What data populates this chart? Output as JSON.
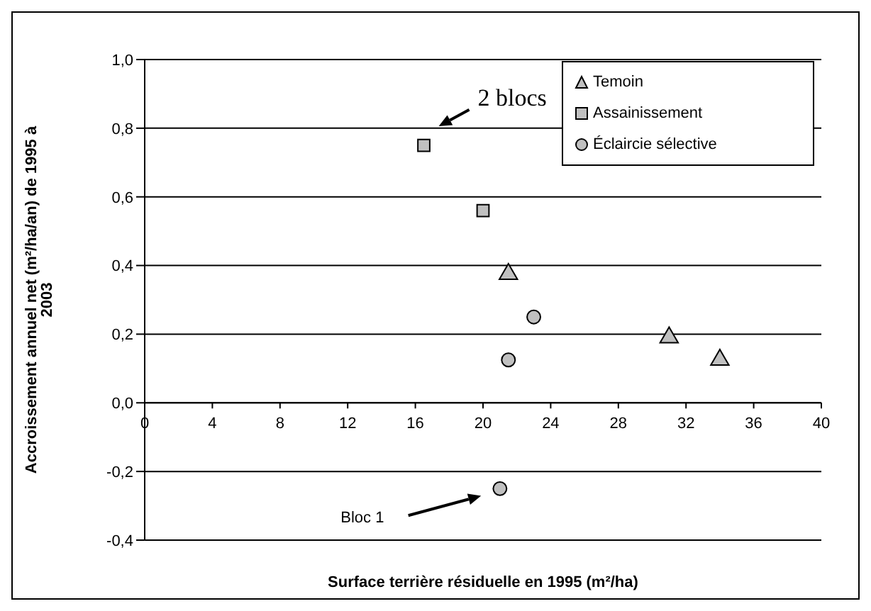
{
  "chart_data": {
    "type": "scatter",
    "xlabel": "Surface terrière résiduelle en 1995 (m²/ha)",
    "ylabel": "Accroissement annuel net (m²/ha/an) de 1995 à 2003",
    "xlim": [
      0,
      40
    ],
    "xticks": [
      0,
      4,
      8,
      12,
      16,
      20,
      24,
      28,
      32,
      36,
      40
    ],
    "ylim": [
      -0.4,
      1.0
    ],
    "yticks": [
      {
        "value": -0.4,
        "label": "-0,4"
      },
      {
        "value": -0.2,
        "label": "-0,2"
      },
      {
        "value": 0,
        "label": "0,0"
      },
      {
        "value": 0.2,
        "label": "0,2"
      },
      {
        "value": 0.4,
        "label": "0,4"
      },
      {
        "value": 0.6,
        "label": "0,6"
      },
      {
        "value": 0.8,
        "label": "0,8"
      },
      {
        "value": 1.0,
        "label": "1,0"
      }
    ],
    "grid": "y",
    "legend": "top right",
    "series": [
      {
        "name": "Temoin",
        "color": "#c0c0c0",
        "marker": "triangle",
        "x": [
          21.5,
          31,
          34
        ],
        "values": [
          0.375,
          0.19,
          0.125
        ]
      },
      {
        "name": "Assainissement",
        "color": "#c0c0c0",
        "marker": "square",
        "x": [
          16.5,
          20
        ],
        "values": [
          0.75,
          0.56
        ]
      },
      {
        "name": "Éclaircie sélective",
        "color": "#c0c0c0",
        "marker": "circle",
        "x": [
          23,
          21.5,
          21
        ],
        "values": [
          0.25,
          0.125,
          -0.25
        ]
      }
    ],
    "annotations": [
      "2 blocs",
      "Bloc 1"
    ]
  }
}
